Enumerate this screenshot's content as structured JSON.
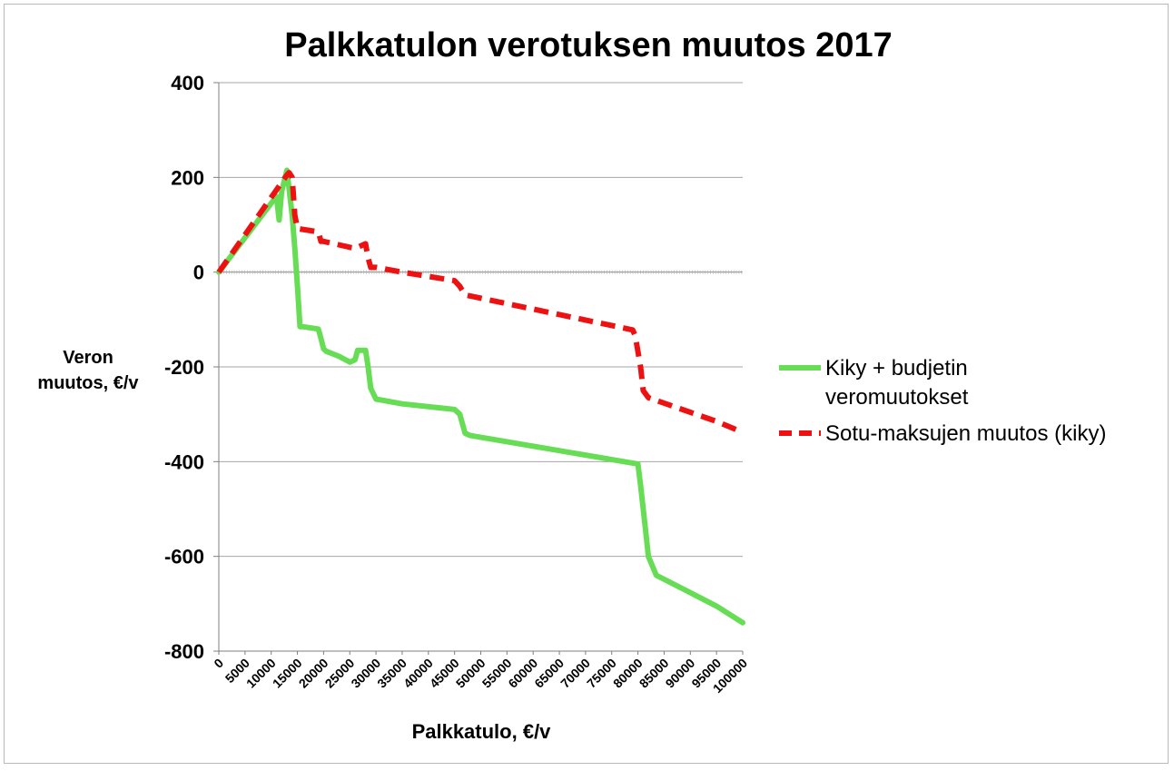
{
  "chart_data": {
    "type": "line",
    "title": "Palkkatulon verotuksen muutos 2017",
    "xlabel": "Palkkatulo, €/v",
    "ylabel_lines": [
      "Veron",
      "muutos, €/v"
    ],
    "xlim": [
      0,
      100000
    ],
    "ylim": [
      -800,
      400
    ],
    "yticks": [
      400,
      200,
      0,
      -200,
      -400,
      -600,
      -800
    ],
    "ytick_labels": [
      "400",
      "200",
      "0",
      "-200",
      "-400",
      "-600",
      "-800"
    ],
    "xticks": [
      0,
      5000,
      10000,
      15000,
      20000,
      25000,
      30000,
      35000,
      40000,
      45000,
      50000,
      55000,
      60000,
      65000,
      70000,
      75000,
      80000,
      85000,
      90000,
      95000,
      100000
    ],
    "xtick_labels": [
      "0",
      "5000",
      "10000",
      "15000",
      "20000",
      "25000",
      "30000",
      "35000",
      "40000",
      "45000",
      "50000",
      "55000",
      "60000",
      "65000",
      "70000",
      "75000",
      "80000",
      "85000",
      "90000",
      "95000",
      "100000"
    ],
    "grid": true,
    "legend_position": "right",
    "series": [
      {
        "name": "Kiky + budjetin veromuutokset",
        "legend_lines": [
          "Kiky + budjetin",
          "veromuutokset"
        ],
        "color": "#66dd55",
        "style": "solid",
        "x": [
          0,
          11000,
          11500,
          12000,
          13000,
          14000,
          14500,
          15000,
          15500,
          16000,
          19000,
          19500,
          20000,
          20500,
          23000,
          25000,
          26000,
          26500,
          27000,
          28000,
          28500,
          29000,
          30000,
          31000,
          35000,
          45000,
          46000,
          46500,
          47000,
          48000,
          80000,
          80500,
          81500,
          82000,
          83500,
          95000,
          100000
        ],
        "y": [
          0,
          160,
          110,
          170,
          215,
          120,
          50,
          -30,
          -115,
          -115,
          -120,
          -140,
          -162,
          -167,
          -178,
          -190,
          -185,
          -165,
          -165,
          -165,
          -200,
          -245,
          -268,
          -270,
          -278,
          -290,
          -300,
          -320,
          -340,
          -345,
          -405,
          -450,
          -550,
          -600,
          -640,
          -705,
          -740
        ]
      },
      {
        "name": "Sotu-maksujen muutos (kiky)",
        "legend_lines": [
          "Sotu-maksujen muutos (kiky)"
        ],
        "color": "#ee1111",
        "style": "dashed",
        "x": [
          0,
          13000,
          13400,
          14000,
          14500,
          15000,
          19000,
          19500,
          20000,
          26000,
          28000,
          28500,
          29000,
          30000,
          35000,
          45000,
          46000,
          47000,
          79000,
          79500,
          80500,
          81000,
          82000,
          95000,
          100000
        ],
        "y": [
          0,
          205,
          210,
          200,
          120,
          92,
          85,
          65,
          65,
          50,
          60,
          30,
          10,
          10,
          0,
          -18,
          -30,
          -48,
          -122,
          -135,
          -200,
          -250,
          -265,
          -315,
          -338
        ]
      }
    ]
  }
}
